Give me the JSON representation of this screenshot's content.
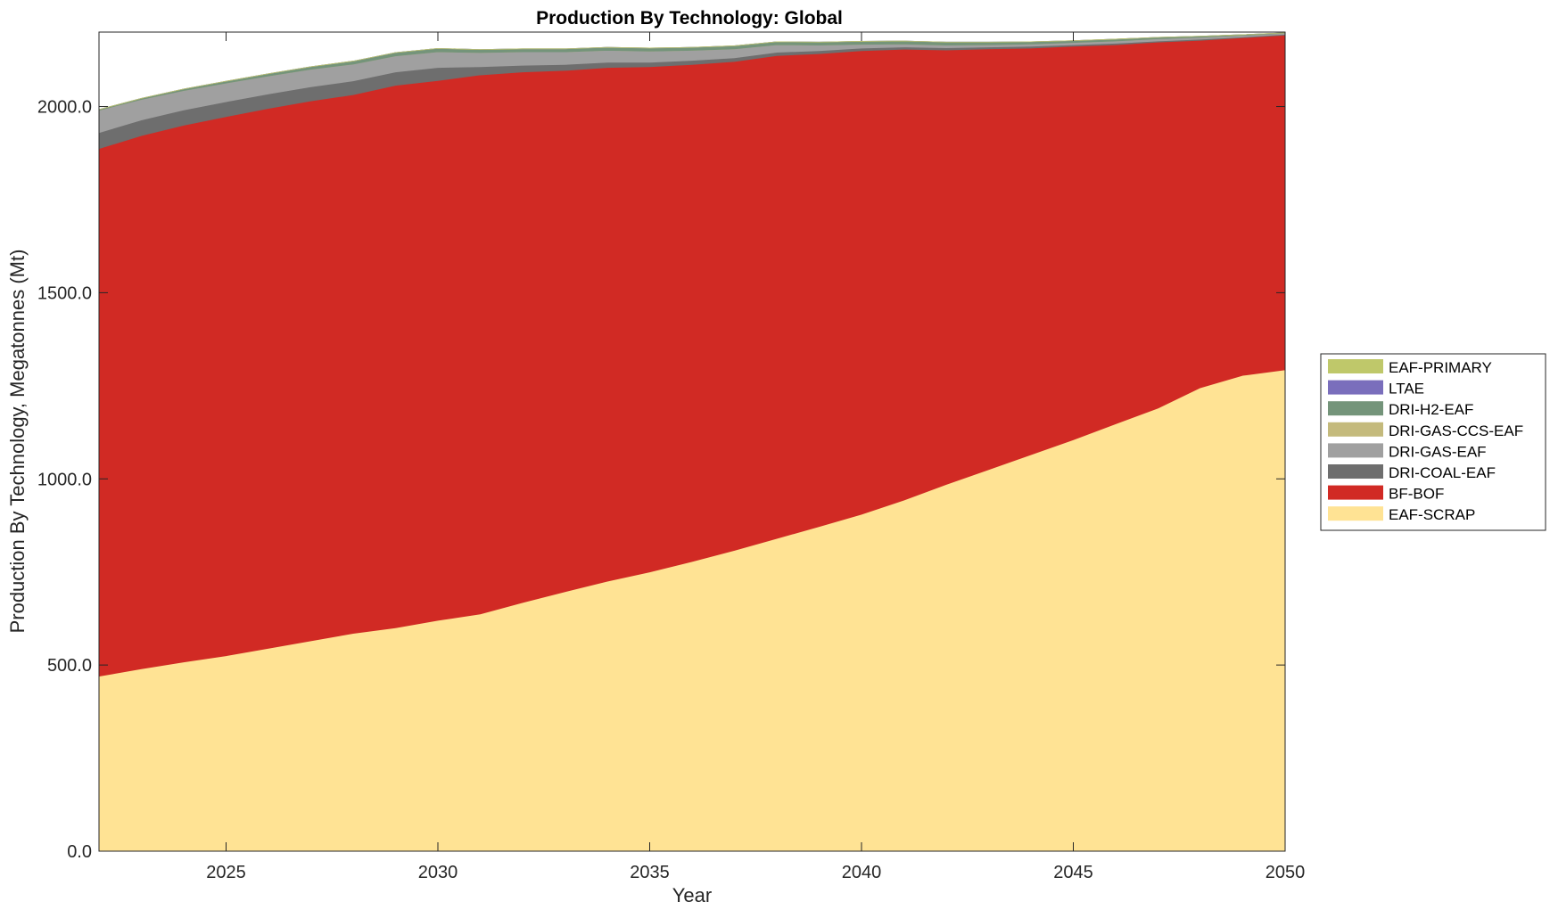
{
  "chart_data": {
    "type": "area",
    "stacked": true,
    "title": "Production By Technology: Global",
    "xlabel": "Year",
    "ylabel": "Production By Technology, Megatonnes (Mt)",
    "xlim": [
      2022,
      2050
    ],
    "ylim": [
      0,
      2200
    ],
    "x_ticks": [
      2025,
      2030,
      2035,
      2040,
      2045,
      2050
    ],
    "y_ticks": [
      0,
      500,
      1000,
      1500,
      2000
    ],
    "y_tick_labels": [
      "0.0",
      "500.0",
      "1000.0",
      "1500.0",
      "2000.0"
    ],
    "legend_position": "outside-right",
    "x": [
      2022,
      2023,
      2024,
      2025,
      2026,
      2027,
      2028,
      2029,
      2030,
      2031,
      2032,
      2033,
      2034,
      2035,
      2036,
      2037,
      2038,
      2039,
      2040,
      2041,
      2042,
      2043,
      2044,
      2045,
      2046,
      2047,
      2048,
      2049,
      2050
    ],
    "series": [
      {
        "name": "EAF-SCRAP",
        "color": "#FFE394",
        "values": [
          470,
          490,
          508,
          525,
          545,
          565,
          585,
          600,
          620,
          637,
          668,
          697,
          725,
          750,
          778,
          808,
          840,
          872,
          905,
          943,
          985,
          1025,
          1065,
          1105,
          1148,
          1190,
          1245,
          1278,
          1293
        ]
      },
      {
        "name": "BF-BOF",
        "color": "#D12A24",
        "values": [
          1417,
          1432,
          1442,
          1448,
          1450,
          1450,
          1447,
          1457,
          1450,
          1448,
          1425,
          1400,
          1380,
          1357,
          1335,
          1313,
          1297,
          1270,
          1245,
          1211,
          1167,
          1130,
          1092,
          1057,
          1018,
          983,
          933,
          907,
          899
        ]
      },
      {
        "name": "DRI-COAL-EAF",
        "color": "#6E6E6E",
        "values": [
          43,
          42,
          41,
          40,
          39,
          38,
          37,
          36,
          35,
          22,
          18,
          16,
          14,
          12,
          11,
          10,
          9,
          8,
          7,
          6,
          6,
          5,
          5,
          4,
          4,
          3,
          3,
          2,
          2
        ]
      },
      {
        "name": "DRI-GAS-EAF",
        "color": "#A0A0A0",
        "values": [
          60,
          55,
          52,
          50,
          48,
          47,
          45,
          43,
          42,
          38,
          36,
          34,
          32,
          30,
          27,
          24,
          20,
          15,
          10,
          8,
          7,
          6,
          6,
          6,
          6,
          6,
          5,
          4,
          3
        ]
      },
      {
        "name": "DRI-GAS-CCS-EAF",
        "color": "#C4BA7C",
        "values": [
          0,
          0,
          0,
          0,
          0,
          0,
          0,
          0,
          0,
          0,
          0,
          0,
          0,
          0,
          0,
          0,
          0,
          0,
          0,
          0,
          0,
          0,
          0,
          0,
          0,
          0,
          0,
          0,
          0
        ]
      },
      {
        "name": "DRI-H2-EAF",
        "color": "#74947A",
        "values": [
          2,
          3,
          4,
          5,
          6,
          7,
          8,
          9,
          9,
          8,
          8,
          8,
          8,
          8,
          8,
          8,
          8,
          8,
          8,
          8,
          8,
          7,
          6,
          5,
          5,
          4,
          3,
          2,
          1
        ]
      },
      {
        "name": "LTAE",
        "color": "#7A6EBC",
        "values": [
          0,
          0,
          0,
          0,
          0,
          0,
          0,
          0,
          0,
          0,
          0,
          0,
          0,
          0,
          0,
          0,
          0,
          0,
          0,
          0,
          0,
          0,
          0,
          0,
          0,
          0,
          0,
          0,
          0
        ]
      },
      {
        "name": "EAF-PRIMARY",
        "color": "#BFC86A",
        "values": [
          0,
          0,
          0,
          0,
          0,
          0,
          0,
          0,
          0,
          0,
          0,
          0,
          0,
          0,
          0,
          0,
          0,
          0,
          0,
          0,
          0,
          0,
          0,
          0,
          0,
          0,
          0,
          0,
          0
        ]
      }
    ],
    "legend_order": [
      "EAF-PRIMARY",
      "LTAE",
      "DRI-H2-EAF",
      "DRI-GAS-CCS-EAF",
      "DRI-GAS-EAF",
      "DRI-COAL-EAF",
      "BF-BOF",
      "EAF-SCRAP"
    ]
  }
}
